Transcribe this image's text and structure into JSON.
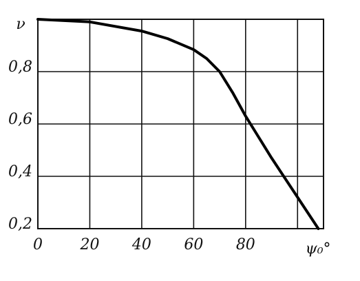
{
  "chart_data": {
    "type": "line",
    "y_label": "ν",
    "x_label": "ψ₀°",
    "x": [
      0,
      20,
      40,
      50,
      60,
      65,
      70,
      75,
      80,
      85,
      90,
      100,
      108
    ],
    "series": [
      {
        "color": "#000000",
        "values": [
          1.0,
          0.99,
          0.955,
          0.926,
          0.884,
          0.85,
          0.8,
          0.72,
          0.63,
          0.55,
          0.47,
          0.32,
          0.2
        ]
      }
    ],
    "xlim": [
      0,
      110
    ],
    "ylim": [
      0.2,
      1.0
    ],
    "xticks": [
      0,
      20,
      40,
      60,
      80
    ],
    "xgrid": [
      0,
      20,
      40,
      60,
      80,
      100
    ],
    "yticks": [
      {
        "value": 0.2,
        "label": "0,2"
      },
      {
        "value": 0.4,
        "label": "0,4"
      },
      {
        "value": 0.6,
        "label": "0,6"
      },
      {
        "value": 0.8,
        "label": "0,8"
      }
    ],
    "grid": true
  }
}
